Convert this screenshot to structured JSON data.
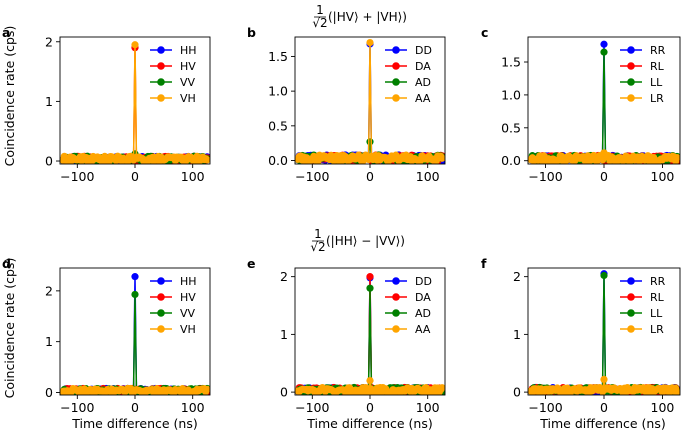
{
  "figure": {
    "row_titles": [
      {
        "prefix_num": "1",
        "prefix_den": "√2",
        "text": "(|HV⟩ + |VH⟩)"
      },
      {
        "prefix_num": "1",
        "prefix_den": "√2",
        "text": "(|HH⟩ − |VV⟩)"
      }
    ],
    "ylabel": "Coincidence rate (cps)",
    "xlabel": "Time difference (ns)",
    "colors": {
      "blue": "#0000ff",
      "red": "#ff0000",
      "green": "#008000",
      "orange": "#ffa500"
    }
  },
  "chart_data": [
    {
      "id": "a",
      "type": "line",
      "panel_label": "a",
      "xlim": [
        -130,
        130
      ],
      "ylim": [
        -0.05,
        2.08
      ],
      "xticks": [
        -100,
        0,
        100
      ],
      "xtick_labels": [
        "−100",
        "0",
        "100"
      ],
      "yticks": [
        0,
        1,
        2
      ],
      "ytick_labels": [
        "0",
        "1",
        "2"
      ],
      "show_ylabel": true,
      "show_xlabel": false,
      "legend_loc": "upper-right",
      "series": [
        {
          "name": "HH",
          "color": "#0000ff",
          "peak": 0.05
        },
        {
          "name": "HV",
          "color": "#ff0000",
          "peak": 1.9
        },
        {
          "name": "VV",
          "color": "#008000",
          "peak": 0.12
        },
        {
          "name": "VH",
          "color": "#ffa500",
          "peak": 1.95
        }
      ]
    },
    {
      "id": "b",
      "type": "line",
      "panel_label": "b",
      "xlim": [
        -130,
        130
      ],
      "ylim": [
        -0.05,
        1.78
      ],
      "xticks": [
        -100,
        0,
        100
      ],
      "xtick_labels": [
        "−100",
        "0",
        "100"
      ],
      "yticks": [
        0,
        0.5,
        1.0,
        1.5
      ],
      "ytick_labels": [
        "0.0",
        "0.5",
        "1.0",
        "1.5"
      ],
      "show_ylabel": false,
      "show_xlabel": false,
      "legend_loc": "upper-right",
      "series": [
        {
          "name": "DD",
          "color": "#0000ff",
          "peak": 1.68
        },
        {
          "name": "DA",
          "color": "#ff0000",
          "peak": 0.05
        },
        {
          "name": "AD",
          "color": "#008000",
          "peak": 0.27
        },
        {
          "name": "AA",
          "color": "#ffa500",
          "peak": 1.7
        }
      ]
    },
    {
      "id": "c",
      "type": "line",
      "panel_label": "c",
      "xlim": [
        -130,
        130
      ],
      "ylim": [
        -0.05,
        1.88
      ],
      "xticks": [
        -100,
        0,
        100
      ],
      "xtick_labels": [
        "−100",
        "0",
        "100"
      ],
      "yticks": [
        0,
        0.5,
        1.0,
        1.5
      ],
      "ytick_labels": [
        "0.0",
        "0.5",
        "1.0",
        "1.5"
      ],
      "show_ylabel": false,
      "show_xlabel": false,
      "legend_loc": "upper-right",
      "series": [
        {
          "name": "RR",
          "color": "#0000ff",
          "peak": 1.77
        },
        {
          "name": "RL",
          "color": "#ff0000",
          "peak": 0.1
        },
        {
          "name": "LL",
          "color": "#008000",
          "peak": 1.65
        },
        {
          "name": "LR",
          "color": "#ffa500",
          "peak": 0.12
        }
      ]
    },
    {
      "id": "d",
      "type": "line",
      "panel_label": "d",
      "xlim": [
        -130,
        130
      ],
      "ylim": [
        -0.05,
        2.45
      ],
      "xticks": [
        -100,
        0,
        100
      ],
      "xtick_labels": [
        "−100",
        "0",
        "100"
      ],
      "yticks": [
        0,
        1,
        2
      ],
      "ytick_labels": [
        "0",
        "1",
        "2"
      ],
      "show_ylabel": true,
      "show_xlabel": true,
      "legend_loc": "upper-right",
      "series": [
        {
          "name": "HH",
          "color": "#0000ff",
          "peak": 2.28
        },
        {
          "name": "HV",
          "color": "#ff0000",
          "peak": 0.06
        },
        {
          "name": "VV",
          "color": "#008000",
          "peak": 1.93
        },
        {
          "name": "VH",
          "color": "#ffa500",
          "peak": 0.05
        }
      ]
    },
    {
      "id": "e",
      "type": "line",
      "panel_label": "e",
      "xlim": [
        -130,
        130
      ],
      "ylim": [
        -0.05,
        2.15
      ],
      "xticks": [
        -100,
        0,
        100
      ],
      "xtick_labels": [
        "−100",
        "0",
        "100"
      ],
      "yticks": [
        0,
        1,
        2
      ],
      "ytick_labels": [
        "0",
        "1",
        "2"
      ],
      "show_ylabel": false,
      "show_xlabel": true,
      "legend_loc": "upper-right",
      "series": [
        {
          "name": "DD",
          "color": "#0000ff",
          "peak": 1.98
        },
        {
          "name": "DA",
          "color": "#ff0000",
          "peak": 2.0
        },
        {
          "name": "AD",
          "color": "#008000",
          "peak": 1.8
        },
        {
          "name": "AA",
          "color": "#ffa500",
          "peak": 0.2
        }
      ]
    },
    {
      "id": "f",
      "type": "line",
      "panel_label": "f",
      "xlim": [
        -130,
        130
      ],
      "ylim": [
        -0.05,
        2.15
      ],
      "xticks": [
        -100,
        0,
        100
      ],
      "xtick_labels": [
        "−100",
        "0",
        "100"
      ],
      "yticks": [
        0,
        1,
        2
      ],
      "ytick_labels": [
        "0",
        "1",
        "2"
      ],
      "show_ylabel": false,
      "show_xlabel": true,
      "legend_loc": "upper-right",
      "series": [
        {
          "name": "RR",
          "color": "#0000ff",
          "peak": 2.05
        },
        {
          "name": "RL",
          "color": "#ff0000",
          "peak": 0.07
        },
        {
          "name": "LL",
          "color": "#008000",
          "peak": 2.02
        },
        {
          "name": "LR",
          "color": "#ffa500",
          "peak": 0.22
        }
      ]
    }
  ]
}
